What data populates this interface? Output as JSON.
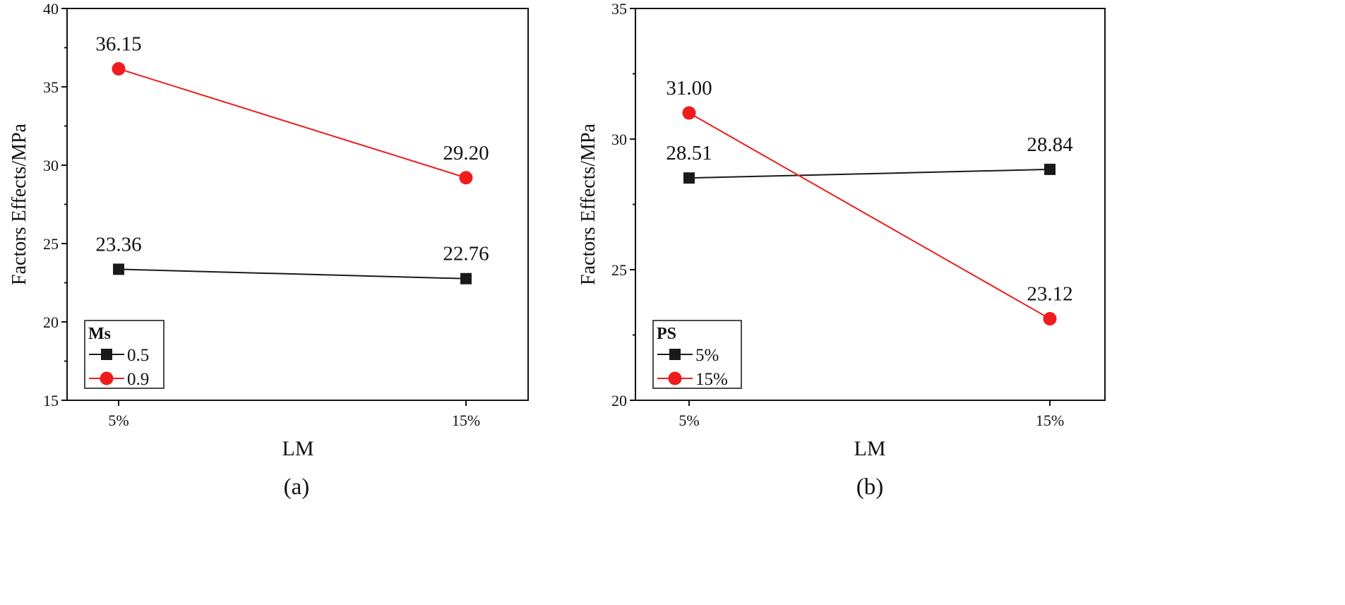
{
  "colors": {
    "series_a": "#1a1a1a",
    "series_b": "#ee1c1c",
    "axis": "#111111"
  },
  "chart_data": [
    {
      "type": "line",
      "caption": "(a)",
      "categories": [
        "5%",
        "15%"
      ],
      "xlabel": "LM",
      "ylabel": "Factors Effects/MPa",
      "ylim": [
        15,
        40
      ],
      "yticks": [
        "15",
        "20",
        "25",
        "30",
        "35",
        "40"
      ],
      "legend": {
        "title": "Ms",
        "position": "bottom-left"
      },
      "series": [
        {
          "name": "0.5",
          "marker": "square",
          "color": "#1a1a1a",
          "values": [
            23.36,
            22.76
          ],
          "labels": [
            "23.36",
            "22.76"
          ]
        },
        {
          "name": "0.9",
          "marker": "circle",
          "color": "#ee1c1c",
          "values": [
            36.15,
            29.2
          ],
          "labels": [
            "36.15",
            "29.20"
          ]
        }
      ]
    },
    {
      "type": "line",
      "caption": "(b)",
      "categories": [
        "5%",
        "15%"
      ],
      "xlabel": "LM",
      "ylabel": "Factors Effects/MPa",
      "ylim": [
        20,
        35
      ],
      "yticks": [
        "20",
        "25",
        "30",
        "35"
      ],
      "legend": {
        "title": "PS",
        "position": "bottom-left"
      },
      "series": [
        {
          "name": "5%",
          "marker": "square",
          "color": "#1a1a1a",
          "values": [
            28.51,
            28.84
          ],
          "labels": [
            "28.51",
            "28.84"
          ]
        },
        {
          "name": "15%",
          "marker": "circle",
          "color": "#ee1c1c",
          "values": [
            31.0,
            23.12
          ],
          "labels": [
            "31.00",
            "23.12"
          ]
        }
      ]
    }
  ]
}
